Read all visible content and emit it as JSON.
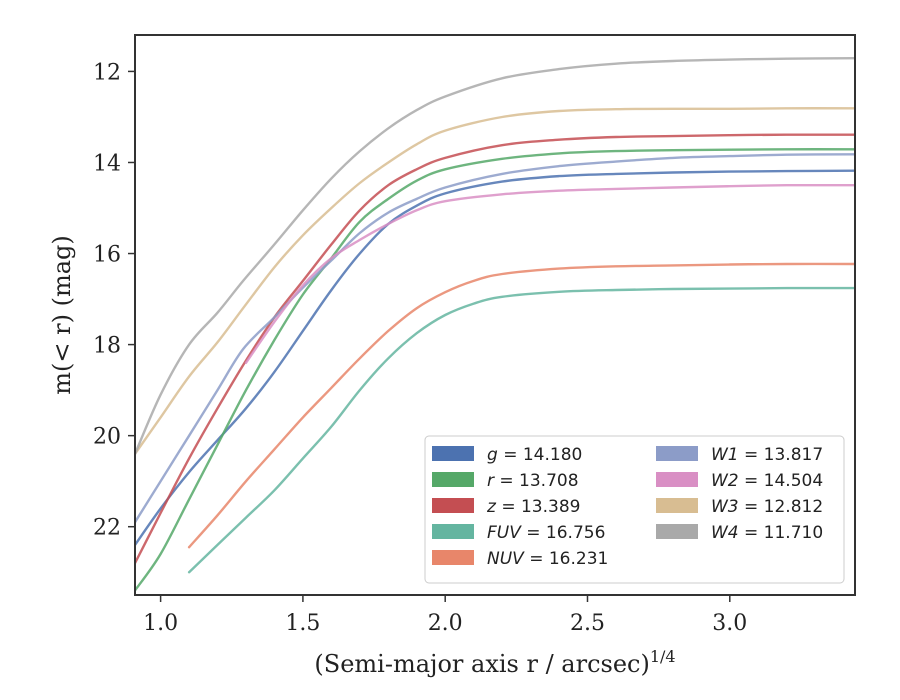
{
  "chart_data": {
    "type": "line",
    "title": "",
    "xlabel": "(Semi-major axis r / arcsec)",
    "xlabel_superscript": "1/4",
    "ylabel": "m(< r) (mag)",
    "xlim": [
      0.91,
      3.44
    ],
    "ylim": [
      23.5,
      11.2
    ],
    "y_inverted": true,
    "grid": false,
    "legend_position": "lower-right",
    "x_ticks": [
      1.0,
      1.5,
      2.0,
      2.5,
      3.0
    ],
    "x_tick_labels": [
      "1.0",
      "1.5",
      "2.0",
      "2.5",
      "3.0"
    ],
    "y_ticks": [
      12,
      14,
      16,
      18,
      20,
      22
    ],
    "y_tick_labels": [
      "12",
      "14",
      "16",
      "18",
      "20",
      "22"
    ],
    "series": [
      {
        "name": "g = 14.180",
        "band": "g",
        "total": "14.180",
        "color": "#4c72b0",
        "x": [
          0.91,
          1.0,
          1.1,
          1.2,
          1.3,
          1.4,
          1.5,
          1.6,
          1.7,
          1.8,
          1.9,
          2.0,
          2.2,
          2.4,
          2.6,
          2.8,
          3.0,
          3.2,
          3.44
        ],
        "y": [
          22.4,
          21.6,
          20.8,
          20.1,
          19.4,
          18.6,
          17.7,
          16.8,
          16.0,
          15.35,
          14.95,
          14.68,
          14.42,
          14.3,
          14.25,
          14.22,
          14.2,
          14.19,
          14.18
        ]
      },
      {
        "name": "r = 13.708",
        "band": "r",
        "total": "13.708",
        "color": "#55a868",
        "x": [
          0.91,
          1.0,
          1.1,
          1.2,
          1.3,
          1.4,
          1.5,
          1.6,
          1.7,
          1.8,
          1.9,
          2.0,
          2.2,
          2.4,
          2.6,
          2.8,
          3.0,
          3.2,
          3.44
        ],
        "y": [
          23.4,
          22.6,
          21.4,
          20.2,
          19.0,
          17.9,
          16.9,
          16.1,
          15.3,
          14.8,
          14.4,
          14.15,
          13.92,
          13.8,
          13.75,
          13.73,
          13.72,
          13.71,
          13.71
        ]
      },
      {
        "name": "z = 13.389",
        "band": "z",
        "total": "13.389",
        "color": "#c44e52",
        "x": [
          0.91,
          1.0,
          1.1,
          1.2,
          1.3,
          1.4,
          1.5,
          1.6,
          1.7,
          1.8,
          1.9,
          2.0,
          2.2,
          2.4,
          2.6,
          2.8,
          3.0,
          3.2,
          3.44
        ],
        "y": [
          22.8,
          21.7,
          20.5,
          19.4,
          18.35,
          17.4,
          16.6,
          15.8,
          15.05,
          14.5,
          14.15,
          13.9,
          13.62,
          13.5,
          13.44,
          13.42,
          13.4,
          13.39,
          13.39
        ]
      },
      {
        "name": "FUV = 16.756",
        "band": "FUV",
        "total": "16.756",
        "color": "#64b5a0",
        "x": [
          1.1,
          1.2,
          1.3,
          1.4,
          1.5,
          1.6,
          1.7,
          1.8,
          1.9,
          2.0,
          2.1,
          2.2,
          2.4,
          2.6,
          2.8,
          3.0,
          3.2,
          3.44
        ],
        "y": [
          23.0,
          22.4,
          21.8,
          21.2,
          20.5,
          19.8,
          19.0,
          18.3,
          17.75,
          17.35,
          17.1,
          16.95,
          16.84,
          16.8,
          16.78,
          16.77,
          16.76,
          16.76
        ]
      },
      {
        "name": "NUV = 16.231",
        "band": "NUV",
        "total": "16.231",
        "color": "#e8866a",
        "x": [
          1.1,
          1.2,
          1.3,
          1.4,
          1.5,
          1.6,
          1.7,
          1.8,
          1.9,
          2.0,
          2.1,
          2.2,
          2.4,
          2.6,
          2.8,
          3.0,
          3.2,
          3.44
        ],
        "y": [
          22.45,
          21.75,
          21.0,
          20.3,
          19.6,
          18.95,
          18.3,
          17.7,
          17.2,
          16.85,
          16.6,
          16.45,
          16.33,
          16.28,
          16.26,
          16.24,
          16.23,
          16.23
        ]
      },
      {
        "name": "W1 = 13.817",
        "band": "W1",
        "total": "13.817",
        "color": "#8c9cc8",
        "x": [
          0.91,
          1.0,
          1.1,
          1.2,
          1.29,
          1.4,
          1.5,
          1.6,
          1.7,
          1.8,
          1.9,
          2.0,
          2.2,
          2.4,
          2.6,
          2.8,
          3.0,
          3.2,
          3.44
        ],
        "y": [
          21.9,
          21.0,
          20.0,
          19.0,
          18.1,
          17.4,
          16.75,
          16.15,
          15.55,
          15.1,
          14.8,
          14.55,
          14.25,
          14.08,
          13.98,
          13.9,
          13.86,
          13.83,
          13.82
        ]
      },
      {
        "name": "W2 = 14.504",
        "band": "W2",
        "total": "14.504",
        "color": "#d98fc4",
        "x": [
          1.3,
          1.4,
          1.5,
          1.6,
          1.7,
          1.8,
          1.9,
          2.0,
          2.2,
          2.4,
          2.6,
          2.8,
          3.0,
          3.2,
          3.44
        ],
        "y": [
          18.4,
          17.5,
          16.7,
          16.1,
          15.7,
          15.35,
          15.05,
          14.85,
          14.7,
          14.62,
          14.58,
          14.55,
          14.52,
          14.5,
          14.5
        ]
      },
      {
        "name": "W3 = 12.812",
        "band": "W3",
        "total": "12.812",
        "color": "#d8bd92",
        "x": [
          0.91,
          1.0,
          1.1,
          1.2,
          1.29,
          1.4,
          1.5,
          1.6,
          1.7,
          1.8,
          1.9,
          2.0,
          2.2,
          2.4,
          2.6,
          2.8,
          3.0,
          3.2,
          3.44
        ],
        "y": [
          20.4,
          19.6,
          18.7,
          17.95,
          17.2,
          16.3,
          15.6,
          15.0,
          14.45,
          14.0,
          13.6,
          13.3,
          13.0,
          12.87,
          12.83,
          12.82,
          12.82,
          12.81,
          12.81
        ]
      },
      {
        "name": "W4 = 11.710",
        "band": "W4",
        "total": "11.710",
        "color": "#a9a9a9",
        "x": [
          0.91,
          1.0,
          1.1,
          1.2,
          1.29,
          1.4,
          1.5,
          1.6,
          1.7,
          1.8,
          1.9,
          2.0,
          2.2,
          2.4,
          2.6,
          2.8,
          3.0,
          3.2,
          3.44
        ],
        "y": [
          20.4,
          19.1,
          18.0,
          17.3,
          16.6,
          15.8,
          15.05,
          14.35,
          13.75,
          13.25,
          12.85,
          12.55,
          12.15,
          11.95,
          11.83,
          11.77,
          11.74,
          11.72,
          11.71
        ]
      }
    ]
  }
}
